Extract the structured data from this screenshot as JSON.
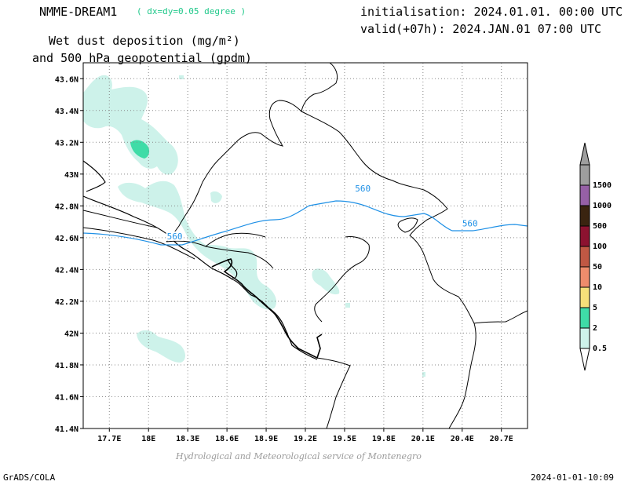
{
  "header": {
    "model_name": "NMME-DREAM1",
    "model_resolution": "( dx=dy=0.05 degree )",
    "init_line": "initialisation: 2024.01.01. 00:00 UTC",
    "valid_line": "valid(+07h): 2024.JAN.01 07:00 UTC",
    "title_line1": "Wet dust deposition (mg/m²)",
    "title_line2": "and 500 hPa geopotential (gpdm)"
  },
  "footer": {
    "left": "GrADS/COLA",
    "right": "2024-01-01-10:09",
    "credit": "Hydrological and Meteorological service of Montenegro"
  },
  "map": {
    "lon_range": [
      17.5,
      20.9
    ],
    "lat_range": [
      41.4,
      43.7
    ],
    "lon_ticks": [
      {
        "value": 17.7,
        "label": "17.7E"
      },
      {
        "value": 18.0,
        "label": "18E"
      },
      {
        "value": 18.3,
        "label": "18.3E"
      },
      {
        "value": 18.6,
        "label": "18.6E"
      },
      {
        "value": 18.9,
        "label": "18.9E"
      },
      {
        "value": 19.2,
        "label": "19.2E"
      },
      {
        "value": 19.5,
        "label": "19.5E"
      },
      {
        "value": 19.8,
        "label": "19.8E"
      },
      {
        "value": 20.1,
        "label": "20.1E"
      },
      {
        "value": 20.4,
        "label": "20.4E"
      },
      {
        "value": 20.7,
        "label": "20.7E"
      }
    ],
    "lat_ticks": [
      {
        "value": 41.4,
        "label": "41.4N"
      },
      {
        "value": 41.6,
        "label": "41.6N"
      },
      {
        "value": 41.8,
        "label": "41.8N"
      },
      {
        "value": 42.0,
        "label": "42N"
      },
      {
        "value": 42.2,
        "label": "42.2N"
      },
      {
        "value": 42.4,
        "label": "42.4N"
      },
      {
        "value": 42.6,
        "label": "42.6N"
      },
      {
        "value": 42.8,
        "label": "42.8N"
      },
      {
        "value": 43.0,
        "label": "43N"
      },
      {
        "value": 43.2,
        "label": "43.2N"
      },
      {
        "value": 43.4,
        "label": "43.4N"
      },
      {
        "value": 43.6,
        "label": "43.6N"
      }
    ],
    "contour_labels": [
      {
        "label": "560",
        "lon": 18.2,
        "lat": 42.6
      },
      {
        "label": "560",
        "lon": 19.64,
        "lat": 42.9
      },
      {
        "label": "560",
        "lon": 20.46,
        "lat": 42.68
      }
    ]
  },
  "legend": {
    "items": [
      {
        "label": "0.5",
        "color": "#cdf2ea"
      },
      {
        "label": "2",
        "color": "#3fdca7"
      },
      {
        "label": "5",
        "color": "#f5e07a"
      },
      {
        "label": "10",
        "color": "#ee8c6c"
      },
      {
        "label": "50",
        "color": "#c05844"
      },
      {
        "label": "100",
        "color": "#8c1230"
      },
      {
        "label": "500",
        "color": "#3a2410"
      },
      {
        "label": "1000",
        "color": "#9660a6"
      },
      {
        "label": "1500",
        "color": "#9e9e9e"
      }
    ]
  },
  "colors": {
    "contour": "#1e90e6",
    "dust_light": "#cdf2ea",
    "dust_medium": "#3fdca7"
  }
}
